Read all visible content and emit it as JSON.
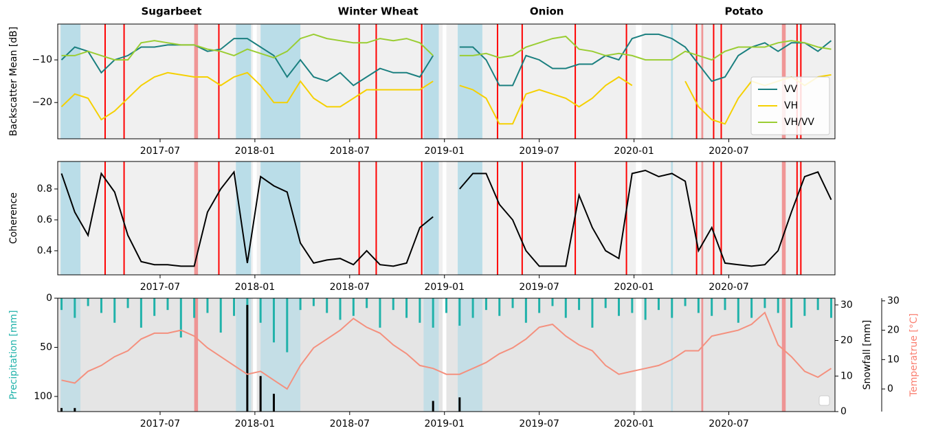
{
  "periods": {
    "blue_spans": [
      [
        2016.975,
        2017.08
      ],
      [
        2017.9,
        2017.98
      ],
      [
        2018.03,
        2018.24
      ],
      [
        2018.89,
        2018.97
      ],
      [
        2019.07,
        2019.2
      ],
      [
        2020.195,
        2020.205
      ]
    ],
    "blue_color": "#add8e6",
    "gaps": [
      [
        2017.99,
        2018.01
      ],
      [
        2018.99,
        2019.01
      ],
      [
        2020.01,
        2020.04
      ]
    ],
    "gap_color": "#ffffff",
    "events": [
      2017.21,
      2017.31,
      2017.81,
      2018.55,
      2018.64,
      2018.88,
      2019.28,
      2019.41,
      2019.69,
      2019.96,
      2020.33,
      2020.42,
      2020.46,
      2020.86,
      2020.88
    ],
    "event_color": "#ff0000",
    "faded_events": [
      [
        2017.68,
        2017.7
      ],
      [
        2020.355,
        2020.365
      ],
      [
        2020.78,
        2020.8
      ]
    ],
    "faded_color": "#f08080"
  },
  "chart_data": [
    {
      "type": "line",
      "ylabel": "Backscatter Mean [dB]",
      "annotations": [
        {
          "text": "Sugarbeet",
          "x": 2017.56
        },
        {
          "text": "Winter Wheat",
          "x": 2018.65
        },
        {
          "text": "Onion",
          "x": 2019.54
        },
        {
          "text": "Potato",
          "x": 2020.58
        }
      ],
      "background": "#f0f0f0",
      "legend": "lower right",
      "xlim": [
        2016.96,
        2021.06
      ],
      "xticks": [
        {
          "value": 2017.5,
          "label": "2017-07"
        },
        {
          "value": 2018,
          "label": "2018-01"
        },
        {
          "value": 2018.5,
          "label": "2018-07"
        },
        {
          "value": 2019,
          "label": "2019-01"
        },
        {
          "value": 2019.5,
          "label": "2019-07"
        },
        {
          "value": 2020,
          "label": "2020-01"
        },
        {
          "value": 2020.5,
          "label": "2020-07"
        }
      ],
      "ylim": [
        -28.5,
        -1.6
      ],
      "yticks": [
        {
          "value": -20,
          "label": "−20"
        },
        {
          "value": -10,
          "label": "−10"
        }
      ],
      "x": [
        2016.98,
        2017.05,
        2017.12,
        2017.19,
        2017.26,
        2017.33,
        2017.4,
        2017.47,
        2017.54,
        2017.61,
        2017.68,
        2017.75,
        2017.82,
        2017.89,
        2017.96,
        2018.03,
        2018.1,
        2018.17,
        2018.24,
        2018.31,
        2018.38,
        2018.45,
        2018.52,
        2018.59,
        2018.66,
        2018.73,
        2018.8,
        2018.87,
        2018.94,
        2019.01,
        2019.08,
        2019.15,
        2019.22,
        2019.29,
        2019.36,
        2019.43,
        2019.5,
        2019.57,
        2019.64,
        2019.71,
        2019.78,
        2019.85,
        2019.92,
        2019.99,
        2020.06,
        2020.13,
        2020.2,
        2020.27,
        2020.34,
        2020.41,
        2020.48,
        2020.55,
        2020.62,
        2020.69,
        2020.76,
        2020.83,
        2020.9,
        2020.97,
        2021.04
      ],
      "series": [
        {
          "name": "VV",
          "color": "#1a7f7f",
          "values": [
            -10,
            -7,
            -8,
            -13,
            -10,
            -9,
            -7,
            -7,
            -6.5,
            -6.5,
            -6.5,
            -8,
            -7.5,
            -5,
            -5,
            -7,
            -9,
            -14,
            -10,
            -14,
            -15,
            -13,
            -16,
            -14,
            -12,
            -13,
            -13,
            -14,
            -9,
            null,
            -7,
            -7,
            -10,
            -16,
            -16,
            -9,
            -10,
            -12,
            -12,
            -11,
            -11,
            -9,
            -10,
            -5,
            -4,
            -4,
            -5,
            -7,
            -11,
            -15,
            -14,
            -9,
            -7,
            -6,
            -8,
            -6,
            -6,
            -8,
            -5.5
          ]
        },
        {
          "name": "VH",
          "color": "#f5d000",
          "values": [
            -21,
            -18,
            -19,
            -24,
            -22,
            -19,
            -16,
            -14,
            -13,
            -13.5,
            -14,
            -14,
            -16,
            -14,
            -13,
            -16,
            -20,
            -20,
            -15,
            -19,
            -21,
            -21,
            -19,
            -17,
            -17,
            -17,
            -17,
            -17,
            -15,
            null,
            -16,
            -17,
            -19,
            -25,
            -25,
            -18,
            -17,
            -18,
            -19,
            -21,
            -19,
            -16,
            -14,
            -16,
            null,
            null,
            null,
            -15,
            -21,
            -24,
            -25,
            -19,
            -15,
            -16,
            -15,
            -14,
            -16,
            -14,
            -13.5
          ]
        },
        {
          "name": "VH/VV",
          "color": "#9acd32",
          "values": [
            -9,
            -9,
            -8,
            -9,
            -10,
            -10,
            -6,
            -5.5,
            -6,
            -6.5,
            -6.5,
            -7.5,
            -8,
            -9,
            -7.5,
            -8.5,
            -9.5,
            -8,
            -5,
            -4,
            -5,
            -5.5,
            -6,
            -6,
            -5,
            -5.5,
            -5,
            -6,
            -9,
            null,
            -9,
            -9,
            -8.5,
            -9.5,
            -9,
            -7,
            -6,
            -5,
            -4.5,
            -7.5,
            -8,
            -9,
            -8.5,
            -9,
            -10,
            -10,
            -10,
            -8,
            -9,
            -10,
            -8,
            -7,
            -7,
            -7,
            -6,
            -5.5,
            -6,
            -7,
            -7.5
          ]
        }
      ]
    },
    {
      "type": "line",
      "ylabel": "Coherence",
      "background": "#f0f0f0",
      "xlim": [
        2016.96,
        2021.06
      ],
      "xticks": [
        {
          "value": 2017.5,
          "label": "2017-07"
        },
        {
          "value": 2018,
          "label": "2018-01"
        },
        {
          "value": 2018.5,
          "label": "2018-07"
        },
        {
          "value": 2019,
          "label": "2019-01"
        },
        {
          "value": 2019.5,
          "label": "2019-07"
        },
        {
          "value": 2020,
          "label": "2020-01"
        },
        {
          "value": 2020.5,
          "label": "2020-07"
        }
      ],
      "ylim": [
        0.244,
        0.978
      ],
      "yticks": [
        0.4,
        0.6,
        0.8
      ],
      "x": [
        2016.98,
        2017.05,
        2017.12,
        2017.19,
        2017.26,
        2017.33,
        2017.4,
        2017.47,
        2017.54,
        2017.61,
        2017.68,
        2017.75,
        2017.82,
        2017.89,
        2017.96,
        2018.03,
        2018.1,
        2018.17,
        2018.24,
        2018.31,
        2018.38,
        2018.45,
        2018.52,
        2018.59,
        2018.66,
        2018.73,
        2018.8,
        2018.87,
        2018.94,
        2019.01,
        2019.08,
        2019.15,
        2019.22,
        2019.29,
        2019.36,
        2019.43,
        2019.5,
        2019.57,
        2019.64,
        2019.71,
        2019.78,
        2019.85,
        2019.92,
        2019.99,
        2020.06,
        2020.13,
        2020.2,
        2020.27,
        2020.34,
        2020.41,
        2020.48,
        2020.55,
        2020.62,
        2020.69,
        2020.76,
        2020.83,
        2020.9,
        2020.97,
        2021.04
      ],
      "series": [
        {
          "color": "#000000",
          "values": [
            0.9,
            0.65,
            0.5,
            0.9,
            0.78,
            0.5,
            0.33,
            0.31,
            0.31,
            0.3,
            0.3,
            0.65,
            0.8,
            0.91,
            0.32,
            0.88,
            0.82,
            0.78,
            0.45,
            0.32,
            0.34,
            0.35,
            0.31,
            0.4,
            0.31,
            0.3,
            0.32,
            0.55,
            0.62,
            null,
            0.8,
            0.9,
            0.9,
            0.7,
            0.6,
            0.4,
            0.3,
            0.3,
            0.3,
            0.76,
            0.55,
            0.4,
            0.35,
            0.9,
            0.92,
            0.88,
            0.9,
            0.85,
            0.4,
            0.55,
            0.32,
            0.31,
            0.3,
            0.31,
            0.4,
            0.65,
            0.88,
            0.91,
            0.73
          ]
        }
      ]
    },
    {
      "type": "combo",
      "ylabel": "Precipitation [mm]",
      "ylabel_color": "#20b2aa",
      "y2label": "Snowfall [mm]",
      "y3label": "Temperatrue [°C]",
      "y3label_color": "#fa8072",
      "background": "#e5e5e5",
      "xlim": [
        2016.96,
        2021.06
      ],
      "xticks": [
        {
          "value": 2017.5,
          "label": "2017-07"
        },
        {
          "value": 2018,
          "label": "2018-01"
        },
        {
          "value": 2018.5,
          "label": "2018-07"
        },
        {
          "value": 2019,
          "label": "2019-01"
        },
        {
          "value": 2019.5,
          "label": "2019-07"
        },
        {
          "value": 2020,
          "label": "2020-01"
        },
        {
          "value": 2020.5,
          "label": "2020-07"
        }
      ],
      "ylim": [
        0,
        115.4
      ],
      "invert_y": true,
      "yticks": [
        0,
        50,
        100
      ],
      "y2lim": [
        0,
        31.9
      ],
      "y2ticks": [
        0,
        10,
        20,
        30
      ],
      "y3lim": [
        -7.7,
        30.9
      ],
      "y3ticks": [
        0,
        10,
        20,
        30
      ],
      "x": [
        2016.98,
        2017.05,
        2017.12,
        2017.19,
        2017.26,
        2017.33,
        2017.4,
        2017.47,
        2017.54,
        2017.61,
        2017.68,
        2017.75,
        2017.82,
        2017.89,
        2017.96,
        2018.03,
        2018.1,
        2018.17,
        2018.24,
        2018.31,
        2018.38,
        2018.45,
        2018.52,
        2018.59,
        2018.66,
        2018.73,
        2018.8,
        2018.87,
        2018.94,
        2019.01,
        2019.08,
        2019.15,
        2019.22,
        2019.29,
        2019.36,
        2019.43,
        2019.5,
        2019.57,
        2019.64,
        2019.71,
        2019.78,
        2019.85,
        2019.92,
        2019.99,
        2020.06,
        2020.13,
        2020.2,
        2020.27,
        2020.34,
        2020.41,
        2020.48,
        2020.55,
        2020.62,
        2020.69,
        2020.76,
        2020.83,
        2020.9,
        2020.97,
        2021.04
      ],
      "series": [
        {
          "kind": "bar",
          "color": "#20b2aa",
          "values": [
            12,
            20,
            8,
            15,
            25,
            10,
            30,
            18,
            12,
            40,
            20,
            15,
            35,
            18,
            80,
            25,
            45,
            55,
            12,
            8,
            15,
            22,
            18,
            10,
            30,
            12,
            20,
            25,
            30,
            15,
            28,
            20,
            12,
            18,
            10,
            25,
            15,
            8,
            20,
            12,
            30,
            10,
            18,
            15,
            22,
            12,
            20,
            8,
            15,
            18,
            12,
            25,
            20,
            10,
            15,
            30,
            18,
            12,
            20
          ]
        },
        {
          "kind": "bar",
          "axis": "y2",
          "color": "#000000",
          "values": [
            1,
            1,
            0,
            0,
            0,
            0,
            0,
            0,
            0,
            0,
            0,
            0,
            0,
            0,
            30,
            10,
            5,
            0,
            0,
            0,
            0,
            0,
            0,
            0,
            0,
            0,
            0,
            0,
            3,
            0,
            4,
            0,
            0,
            0,
            0,
            0,
            0,
            0,
            0,
            0,
            0,
            0,
            0,
            0,
            0,
            0,
            0,
            0,
            0,
            0,
            0,
            0,
            0,
            0,
            0,
            0,
            0,
            0,
            0
          ]
        },
        {
          "kind": "line",
          "axis": "y3",
          "color": "#f4907e",
          "values": [
            3,
            2,
            6,
            8,
            11,
            13,
            17,
            19,
            19,
            20,
            18,
            14,
            11,
            8,
            5,
            6,
            3,
            0,
            8,
            14,
            17,
            20,
            24,
            21,
            19,
            15,
            12,
            8,
            7,
            5,
            5,
            7,
            9,
            12,
            14,
            17,
            21,
            22,
            18,
            15,
            13,
            8,
            5,
            6,
            7,
            8,
            10,
            13,
            13,
            18,
            19,
            20,
            22,
            26,
            15,
            11,
            6,
            4,
            7
          ]
        }
      ]
    }
  ]
}
